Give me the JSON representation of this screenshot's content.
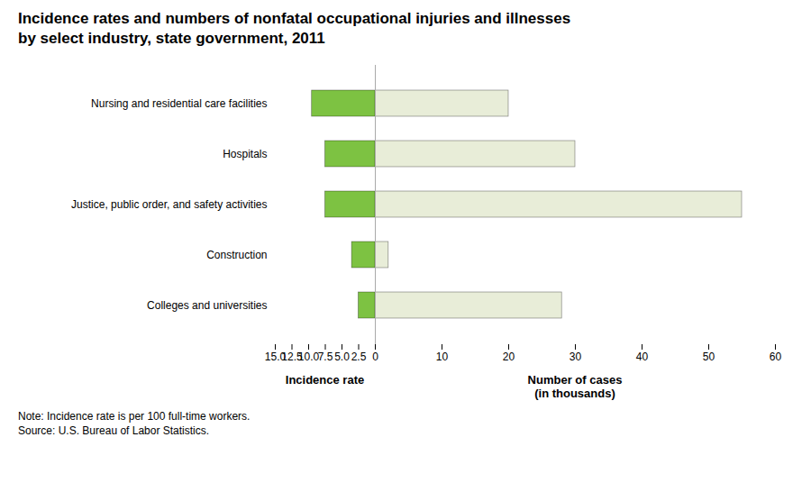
{
  "chart_data": [
    {
      "type": "bar",
      "orientation": "horizontal",
      "title": "Incidence rates and numbers of nonfatal occupational injuries and illnesses",
      "subtitle": "by select industry, state government, 2011",
      "annotations": [
        "Note: Incidence rate is per 100 full-time workers.",
        "Source: U.S. Bureau of Labor Statistics."
      ],
      "categories": [
        "Nursing and residential care facilities",
        "Hospitals",
        "Justice, public order, and safety activities",
        "Construction",
        "Colleges and universities"
      ],
      "values": [
        9.5,
        7.5,
        7.5,
        3.5,
        2.5
      ],
      "color": "#7DC242",
      "xlabel": "Incidence rate",
      "xlim": [
        15,
        0
      ],
      "xticks": [
        {
          "value": 15,
          "label": "15.0"
        },
        12.5,
        {
          "value": 10,
          "label": "10.0"
        },
        7.5,
        {
          "value": 5,
          "label": "5.0"
        },
        2.5
      ]
    },
    {
      "type": "bar",
      "orientation": "horizontal",
      "categories": [
        "Nursing and residential care facilities",
        "Hospitals",
        "Justice, public order, and safety activities",
        "Construction",
        "Colleges and universities"
      ],
      "values": [
        20,
        30,
        55,
        2,
        28
      ],
      "color": "#E8EDD8",
      "xlabel": "Number of cases\n(in thousands)",
      "xlim": [
        0,
        60
      ],
      "xticks": [
        0,
        10,
        20,
        30,
        40,
        50,
        60
      ],
      "tick_labels": "x"
    }
  ]
}
